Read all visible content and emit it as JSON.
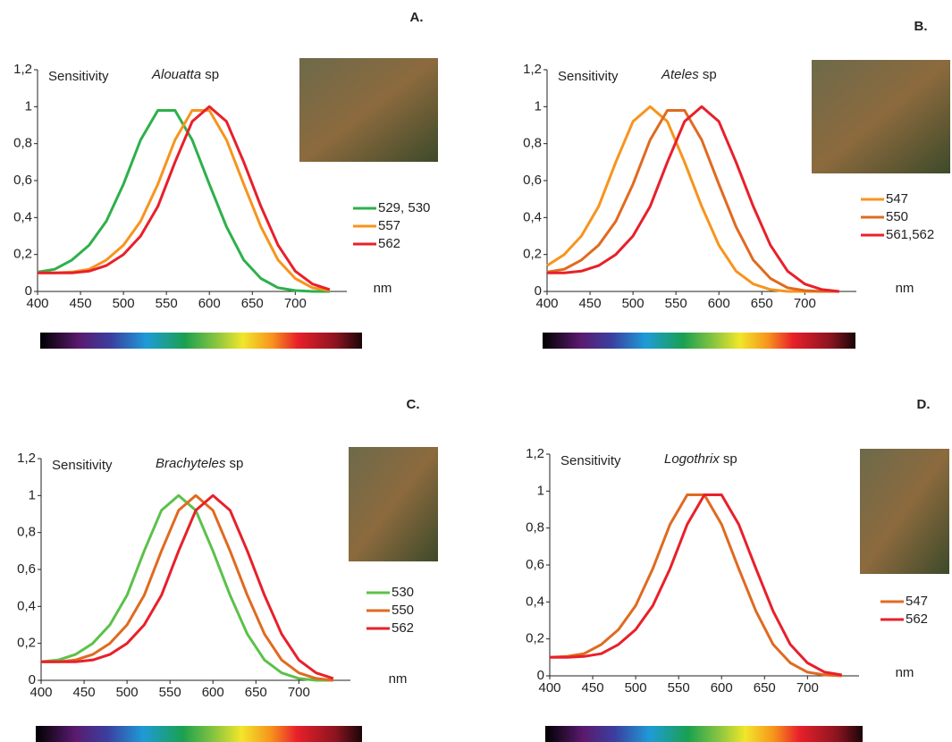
{
  "chart_data": [
    {
      "type": "line",
      "panel_label": "A.",
      "y_label": "Sensitivity",
      "title_italic": "Alouatta",
      "title_rest": "sp",
      "x_label": "nm",
      "x": [
        400,
        420,
        440,
        460,
        480,
        500,
        520,
        540,
        560,
        580,
        600,
        620,
        640,
        660,
        680,
        700,
        720,
        740
      ],
      "xlim": [
        400,
        760
      ],
      "xticks": [
        400,
        450,
        500,
        550,
        600,
        650,
        700
      ],
      "ylim": [
        0,
        1.2
      ],
      "yticks": [
        0,
        {
          "value": 0.2,
          "label": "0,2"
        },
        {
          "value": 0.4,
          "label": "0,4"
        },
        {
          "value": 0.6,
          "label": "0,6"
        },
        {
          "value": 0.8,
          "label": "0,8"
        },
        1,
        {
          "value": 1.2,
          "label": "1,2"
        }
      ],
      "series": [
        {
          "name": "529, 530",
          "color": "#2eb04b",
          "values": [
            0.105,
            0.12,
            0.17,
            0.25,
            0.38,
            0.58,
            0.82,
            0.98,
            0.98,
            0.82,
            0.58,
            0.35,
            0.17,
            0.07,
            0.02,
            0.005,
            0,
            0
          ]
        },
        {
          "name": "557",
          "color": "#f7941d",
          "values": [
            0.1,
            0.1,
            0.105,
            0.12,
            0.17,
            0.25,
            0.38,
            0.58,
            0.82,
            0.98,
            0.98,
            0.82,
            0.58,
            0.35,
            0.17,
            0.07,
            0.02,
            0.005
          ]
        },
        {
          "name": "562",
          "color": "#e8202a",
          "values": [
            0.1,
            0.1,
            0.1,
            0.11,
            0.14,
            0.2,
            0.3,
            0.46,
            0.7,
            0.92,
            1,
            0.92,
            0.7,
            0.46,
            0.25,
            0.11,
            0.04,
            0.01
          ]
        }
      ]
    },
    {
      "type": "line",
      "panel_label": "B.",
      "y_label": "Sensitivity",
      "title_italic": "Ateles",
      "title_rest": "sp",
      "x_label": "nm",
      "x": [
        400,
        420,
        440,
        460,
        480,
        500,
        520,
        540,
        560,
        580,
        600,
        620,
        640,
        660,
        680,
        700,
        720,
        740
      ],
      "xlim": [
        400,
        760
      ],
      "xticks": [
        400,
        450,
        500,
        550,
        600,
        650,
        700
      ],
      "ylim": [
        0,
        1.2
      ],
      "yticks": [
        0,
        {
          "value": 0.2,
          "label": "0,2"
        },
        {
          "value": 0.4,
          "label": "0,4"
        },
        {
          "value": 0.6,
          "label": "0,6"
        },
        {
          "value": 0.8,
          "label": "0,8"
        },
        1,
        {
          "value": 1.2,
          "label": "1,2"
        }
      ],
      "series": [
        {
          "name": "547",
          "color": "#f7941d",
          "values": [
            0.14,
            0.2,
            0.3,
            0.46,
            0.7,
            0.92,
            1,
            0.92,
            0.7,
            0.46,
            0.25,
            0.11,
            0.04,
            0.01,
            0,
            0,
            0,
            0
          ]
        },
        {
          "name": "550",
          "color": "#e06a20",
          "values": [
            0.105,
            0.12,
            0.17,
            0.25,
            0.38,
            0.58,
            0.82,
            0.98,
            0.98,
            0.82,
            0.58,
            0.35,
            0.17,
            0.07,
            0.02,
            0.005,
            0,
            0
          ]
        },
        {
          "name": "561,562",
          "color": "#e8202a",
          "values": [
            0.1,
            0.1,
            0.11,
            0.14,
            0.2,
            0.3,
            0.46,
            0.7,
            0.92,
            1,
            0.92,
            0.7,
            0.46,
            0.25,
            0.11,
            0.04,
            0.01,
            0
          ]
        }
      ]
    },
    {
      "type": "line",
      "panel_label": "C.",
      "y_label": "Sensitivity",
      "title_italic": "Brachyteles",
      "title_rest": "sp",
      "x_label": "nm",
      "x": [
        400,
        420,
        440,
        460,
        480,
        500,
        520,
        540,
        560,
        580,
        600,
        620,
        640,
        660,
        680,
        700,
        720,
        740
      ],
      "xlim": [
        400,
        760
      ],
      "xticks": [
        400,
        450,
        500,
        550,
        600,
        650,
        700
      ],
      "ylim": [
        0,
        1.2
      ],
      "yticks": [
        0,
        {
          "value": 0.2,
          "label": "0,2"
        },
        {
          "value": 0.4,
          "label": "0,4"
        },
        {
          "value": 0.6,
          "label": "0,6"
        },
        {
          "value": 0.8,
          "label": "0,8"
        },
        1,
        {
          "value": 1.2,
          "label": "1,2"
        }
      ],
      "series": [
        {
          "name": "530",
          "color": "#5cc14a",
          "values": [
            0.1,
            0.11,
            0.14,
            0.2,
            0.3,
            0.46,
            0.7,
            0.92,
            1,
            0.92,
            0.7,
            0.46,
            0.25,
            0.11,
            0.04,
            0.01,
            0,
            0
          ]
        },
        {
          "name": "550",
          "color": "#e06a20",
          "values": [
            0.1,
            0.1,
            0.11,
            0.14,
            0.2,
            0.3,
            0.46,
            0.7,
            0.92,
            1,
            0.92,
            0.7,
            0.46,
            0.25,
            0.11,
            0.04,
            0.01,
            0
          ]
        },
        {
          "name": "562",
          "color": "#e8202a",
          "values": [
            0.1,
            0.1,
            0.1,
            0.11,
            0.14,
            0.2,
            0.3,
            0.46,
            0.7,
            0.92,
            1,
            0.92,
            0.7,
            0.46,
            0.25,
            0.11,
            0.04,
            0.01
          ]
        }
      ]
    },
    {
      "type": "line",
      "panel_label": "D.",
      "y_label": "Sensitivity",
      "title_italic": "Logothrix",
      "title_rest": "sp",
      "x_label": "nm",
      "x": [
        400,
        420,
        440,
        460,
        480,
        500,
        520,
        540,
        560,
        580,
        600,
        620,
        640,
        660,
        680,
        700,
        720,
        740
      ],
      "xlim": [
        400,
        760
      ],
      "xticks": [
        400,
        450,
        500,
        550,
        600,
        650,
        700
      ],
      "ylim": [
        0,
        1.2
      ],
      "yticks": [
        0,
        {
          "value": 0.2,
          "label": "0,2"
        },
        {
          "value": 0.4,
          "label": "0,4"
        },
        {
          "value": 0.6,
          "label": "0,6"
        },
        {
          "value": 0.8,
          "label": "0,8"
        },
        1,
        {
          "value": 1.2,
          "label": "1,2"
        }
      ],
      "series": [
        {
          "name": "547",
          "color": "#e06a20",
          "values": [
            0.1,
            0.105,
            0.12,
            0.17,
            0.25,
            0.38,
            0.58,
            0.82,
            0.98,
            0.98,
            0.82,
            0.58,
            0.35,
            0.17,
            0.07,
            0.02,
            0.005,
            0
          ]
        },
        {
          "name": "562",
          "color": "#e8202a",
          "values": [
            0.1,
            0.1,
            0.105,
            0.12,
            0.17,
            0.25,
            0.38,
            0.58,
            0.82,
            0.98,
            0.98,
            0.82,
            0.58,
            0.35,
            0.17,
            0.07,
            0.02,
            0.005
          ]
        }
      ]
    }
  ]
}
